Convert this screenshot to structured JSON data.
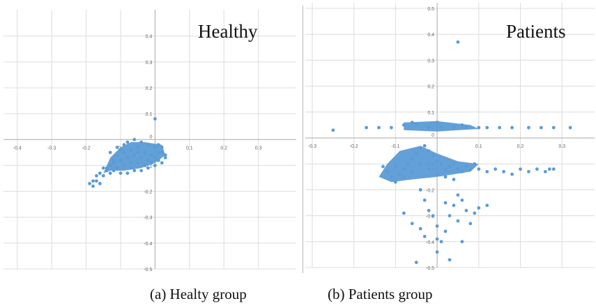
{
  "captions": {
    "a": "(a) Healty group",
    "b": "(b) Patients group"
  },
  "chart_data": [
    {
      "type": "scatter",
      "title": "Healthy",
      "xlabel": "",
      "ylabel": "",
      "xlim": [
        -0.43,
        0.4
      ],
      "ylim": [
        -0.5,
        0.48
      ],
      "grid": true,
      "marker_color": "#5b9bd5",
      "xticks": [
        -0.4,
        -0.3,
        -0.2,
        -0.1,
        0.1,
        0.2,
        0.3
      ],
      "yticks": [
        0.4,
        0.3,
        0.2,
        0.1,
        0,
        -0.1,
        -0.2,
        -0.3,
        -0.4,
        -0.5
      ],
      "x_tick_labels": [
        "-0.4",
        "-0.3",
        "-0.2",
        "-0.1",
        "0.1",
        "0.2",
        "0.3"
      ],
      "y_tick_labels": [
        "0.4",
        "0.3",
        "0.2",
        "0.1",
        "0",
        "-0.1",
        "-0.2",
        "-0.3",
        "-0.4",
        "-0.5"
      ],
      "points": [
        [
          0.0,
          0.08
        ],
        [
          -0.19,
          -0.17
        ],
        [
          -0.18,
          -0.18
        ],
        [
          -0.17,
          -0.16
        ],
        [
          -0.16,
          -0.17
        ],
        [
          -0.18,
          -0.16
        ],
        [
          -0.15,
          -0.14
        ],
        [
          -0.14,
          -0.12
        ],
        [
          -0.13,
          -0.1
        ],
        [
          -0.12,
          -0.08
        ],
        [
          -0.11,
          -0.06
        ],
        [
          -0.1,
          -0.04
        ],
        [
          -0.09,
          -0.02
        ],
        [
          -0.08,
          -0.01
        ],
        [
          -0.06,
          0.0
        ],
        [
          -0.04,
          -0.01
        ],
        [
          -0.02,
          -0.02
        ],
        [
          0.0,
          -0.03
        ],
        [
          0.01,
          -0.02
        ],
        [
          0.02,
          -0.03
        ],
        [
          0.03,
          -0.06
        ],
        [
          0.03,
          -0.07
        ],
        [
          0.02,
          -0.09
        ],
        [
          0.0,
          -0.1
        ],
        [
          -0.02,
          -0.11
        ],
        [
          -0.04,
          -0.12
        ],
        [
          -0.06,
          -0.12
        ],
        [
          -0.08,
          -0.13
        ],
        [
          -0.1,
          -0.13
        ],
        [
          -0.12,
          -0.12
        ],
        [
          -0.14,
          -0.11
        ],
        [
          -0.13,
          -0.05
        ],
        [
          -0.11,
          -0.03
        ],
        [
          -0.09,
          -0.05
        ],
        [
          -0.07,
          -0.04
        ],
        [
          -0.05,
          -0.03
        ],
        [
          -0.03,
          -0.05
        ],
        [
          -0.01,
          -0.06
        ],
        [
          0.01,
          -0.05
        ],
        [
          -0.12,
          -0.09
        ],
        [
          -0.1,
          -0.08
        ],
        [
          -0.08,
          -0.07
        ],
        [
          -0.06,
          -0.06
        ],
        [
          -0.04,
          -0.07
        ],
        [
          -0.02,
          -0.08
        ],
        [
          0.0,
          -0.07
        ],
        [
          -0.11,
          -0.11
        ],
        [
          -0.09,
          -0.1
        ],
        [
          -0.07,
          -0.09
        ],
        [
          -0.05,
          -0.09
        ],
        [
          -0.03,
          -0.1
        ],
        [
          -0.01,
          -0.09
        ],
        [
          -0.15,
          -0.11
        ],
        [
          -0.13,
          -0.13
        ],
        [
          -0.16,
          -0.13
        ],
        [
          -0.17,
          -0.14
        ],
        [
          0.02,
          -0.05
        ],
        [
          0.01,
          -0.08
        ],
        [
          -0.05,
          -0.05
        ],
        [
          -0.07,
          -0.11
        ]
      ]
    },
    {
      "type": "scatter",
      "title": "Patients",
      "xlabel": "",
      "ylabel": "",
      "xlim": [
        -0.31,
        0.37
      ],
      "ylim": [
        -0.5,
        0.5
      ],
      "grid": true,
      "marker_color": "#5b9bd5",
      "xticks": [
        -0.3,
        -0.2,
        -0.1,
        0.1,
        0.2,
        0.3
      ],
      "yticks": [
        0.5,
        0.4,
        0.3,
        0.2,
        0.1,
        0,
        -0.1,
        -0.2,
        -0.3,
        -0.4,
        -0.5
      ],
      "x_tick_labels": [
        "-0.3",
        "-0.2",
        "-0.1",
        "0.1",
        "0.2",
        "0.3"
      ],
      "y_tick_labels": [
        "0.5",
        "0.4",
        "0.3",
        "0.2",
        "0.1",
        "0",
        "-0.1",
        "-0.2",
        "-0.3",
        "-0.4",
        "-0.5"
      ],
      "points": [
        [
          0.05,
          0.37
        ],
        [
          -0.25,
          0.03
        ],
        [
          -0.17,
          0.04
        ],
        [
          -0.14,
          0.04
        ],
        [
          -0.11,
          0.04
        ],
        [
          -0.08,
          0.05
        ],
        [
          -0.05,
          0.05
        ],
        [
          -0.02,
          0.04
        ],
        [
          0.01,
          0.04
        ],
        [
          0.04,
          0.04
        ],
        [
          0.07,
          0.04
        ],
        [
          0.1,
          0.04
        ],
        [
          0.12,
          0.04
        ],
        [
          0.15,
          0.04
        ],
        [
          0.18,
          0.04
        ],
        [
          0.22,
          0.04
        ],
        [
          0.25,
          0.04
        ],
        [
          0.28,
          0.04
        ],
        [
          0.32,
          0.04
        ],
        [
          -0.06,
          0.06
        ],
        [
          0.0,
          0.06
        ],
        [
          0.06,
          0.05
        ],
        [
          -0.13,
          -0.11
        ],
        [
          -0.12,
          -0.13
        ],
        [
          -0.11,
          -0.15
        ],
        [
          -0.1,
          -0.17
        ],
        [
          -0.09,
          -0.14
        ],
        [
          -0.08,
          -0.12
        ],
        [
          -0.07,
          -0.1
        ],
        [
          -0.06,
          -0.08
        ],
        [
          -0.05,
          -0.06
        ],
        [
          -0.04,
          -0.04
        ],
        [
          -0.03,
          -0.03
        ],
        [
          -0.02,
          -0.05
        ],
        [
          -0.01,
          -0.07
        ],
        [
          0.0,
          -0.09
        ],
        [
          0.01,
          -0.1
        ],
        [
          0.02,
          -0.12
        ],
        [
          0.03,
          -0.11
        ],
        [
          0.04,
          -0.1
        ],
        [
          0.05,
          -0.12
        ],
        [
          0.06,
          -0.13
        ],
        [
          0.07,
          -0.11
        ],
        [
          0.08,
          -0.12
        ],
        [
          0.09,
          -0.1
        ],
        [
          0.1,
          -0.12
        ],
        [
          0.12,
          -0.13
        ],
        [
          0.14,
          -0.12
        ],
        [
          0.16,
          -0.13
        ],
        [
          0.18,
          -0.14
        ],
        [
          0.2,
          -0.12
        ],
        [
          0.22,
          -0.13
        ],
        [
          0.24,
          -0.12
        ],
        [
          0.26,
          -0.13
        ],
        [
          0.27,
          -0.12
        ],
        [
          0.28,
          -0.12
        ],
        [
          -0.1,
          -0.11
        ],
        [
          -0.08,
          -0.15
        ],
        [
          -0.06,
          -0.13
        ],
        [
          -0.04,
          -0.1
        ],
        [
          -0.02,
          -0.12
        ],
        [
          0.0,
          -0.14
        ],
        [
          0.02,
          -0.15
        ],
        [
          0.04,
          -0.16
        ],
        [
          -0.04,
          -0.2
        ],
        [
          -0.03,
          -0.24
        ],
        [
          -0.02,
          -0.28
        ],
        [
          -0.01,
          -0.3
        ],
        [
          0.0,
          -0.34
        ],
        [
          0.0,
          -0.39
        ],
        [
          0.0,
          -0.44
        ],
        [
          0.01,
          -0.4
        ],
        [
          0.02,
          -0.36
        ],
        [
          0.03,
          -0.3
        ],
        [
          0.04,
          -0.26
        ],
        [
          0.05,
          -0.22
        ],
        [
          0.06,
          -0.24
        ],
        [
          0.07,
          -0.28
        ],
        [
          0.08,
          -0.33
        ],
        [
          0.09,
          -0.29
        ],
        [
          0.1,
          -0.27
        ],
        [
          0.12,
          -0.26
        ],
        [
          -0.08,
          -0.29
        ],
        [
          -0.06,
          -0.33
        ],
        [
          -0.04,
          -0.35
        ],
        [
          -0.05,
          -0.48
        ],
        [
          0.03,
          -0.47
        ],
        [
          0.02,
          -0.25
        ],
        [
          0.05,
          -0.32
        ],
        [
          0.06,
          -0.4
        ],
        [
          -0.03,
          -0.38
        ]
      ]
    }
  ]
}
